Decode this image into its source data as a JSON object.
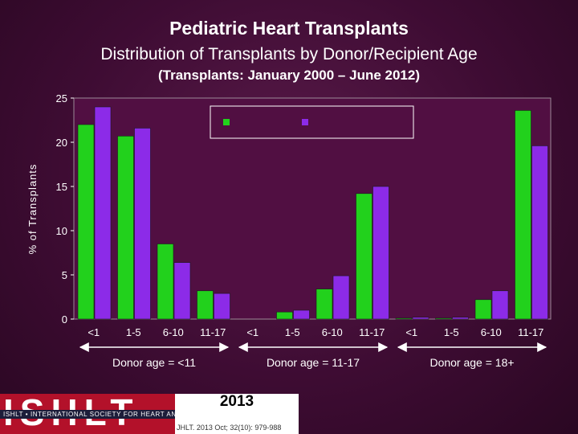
{
  "header": {
    "title": "Pediatric Heart Transplants",
    "subtitle": "Distribution of Transplants by Donor/Recipient Age",
    "period": "(Transplants: January 2000 – June 2012)"
  },
  "chart_data": {
    "type": "bar",
    "title": "Pediatric Heart Transplants",
    "ylabel": "% of Transplants",
    "xlabel": "",
    "ylim": [
      0,
      25
    ],
    "yticks": [
      0,
      5,
      10,
      15,
      20,
      25
    ],
    "grid": false,
    "legend": {
      "position": "top-center",
      "entries": [
        "",
        ""
      ]
    },
    "groups": [
      {
        "label": "Donor age = <11",
        "categories": [
          "<1",
          "1-5",
          "6-10",
          "11-17"
        ]
      },
      {
        "label": "Donor age = 11-17",
        "categories": [
          "<1",
          "1-5",
          "6-10",
          "11-17"
        ]
      },
      {
        "label": "Donor age = 18+",
        "categories": [
          "<1",
          "1-5",
          "6-10",
          "11-17"
        ]
      }
    ],
    "series": [
      {
        "name": "",
        "color": "#22d11c",
        "values": [
          22.0,
          20.7,
          8.5,
          3.2,
          0,
          0.8,
          3.4,
          14.2,
          0.1,
          0.1,
          2.2,
          23.6
        ]
      },
      {
        "name": "",
        "color": "#8c2be8",
        "values": [
          24.0,
          21.6,
          6.4,
          2.9,
          0,
          1.0,
          4.9,
          15.0,
          0.2,
          0.2,
          3.2,
          19.6
        ]
      }
    ]
  },
  "footer": {
    "logo_text": "ISHLT",
    "org_name": "ISHLT • INTERNATIONAL SOCIETY FOR HEART AND LUNG TRANSPLANTATION",
    "year": "2013",
    "citation": "JHLT. 2013 Oct; 32(10): 979-988"
  },
  "colors": {
    "green": "#22d11c",
    "purple": "#8c2be8",
    "background": "#3e0c33",
    "logo_red": "#b3112a"
  }
}
